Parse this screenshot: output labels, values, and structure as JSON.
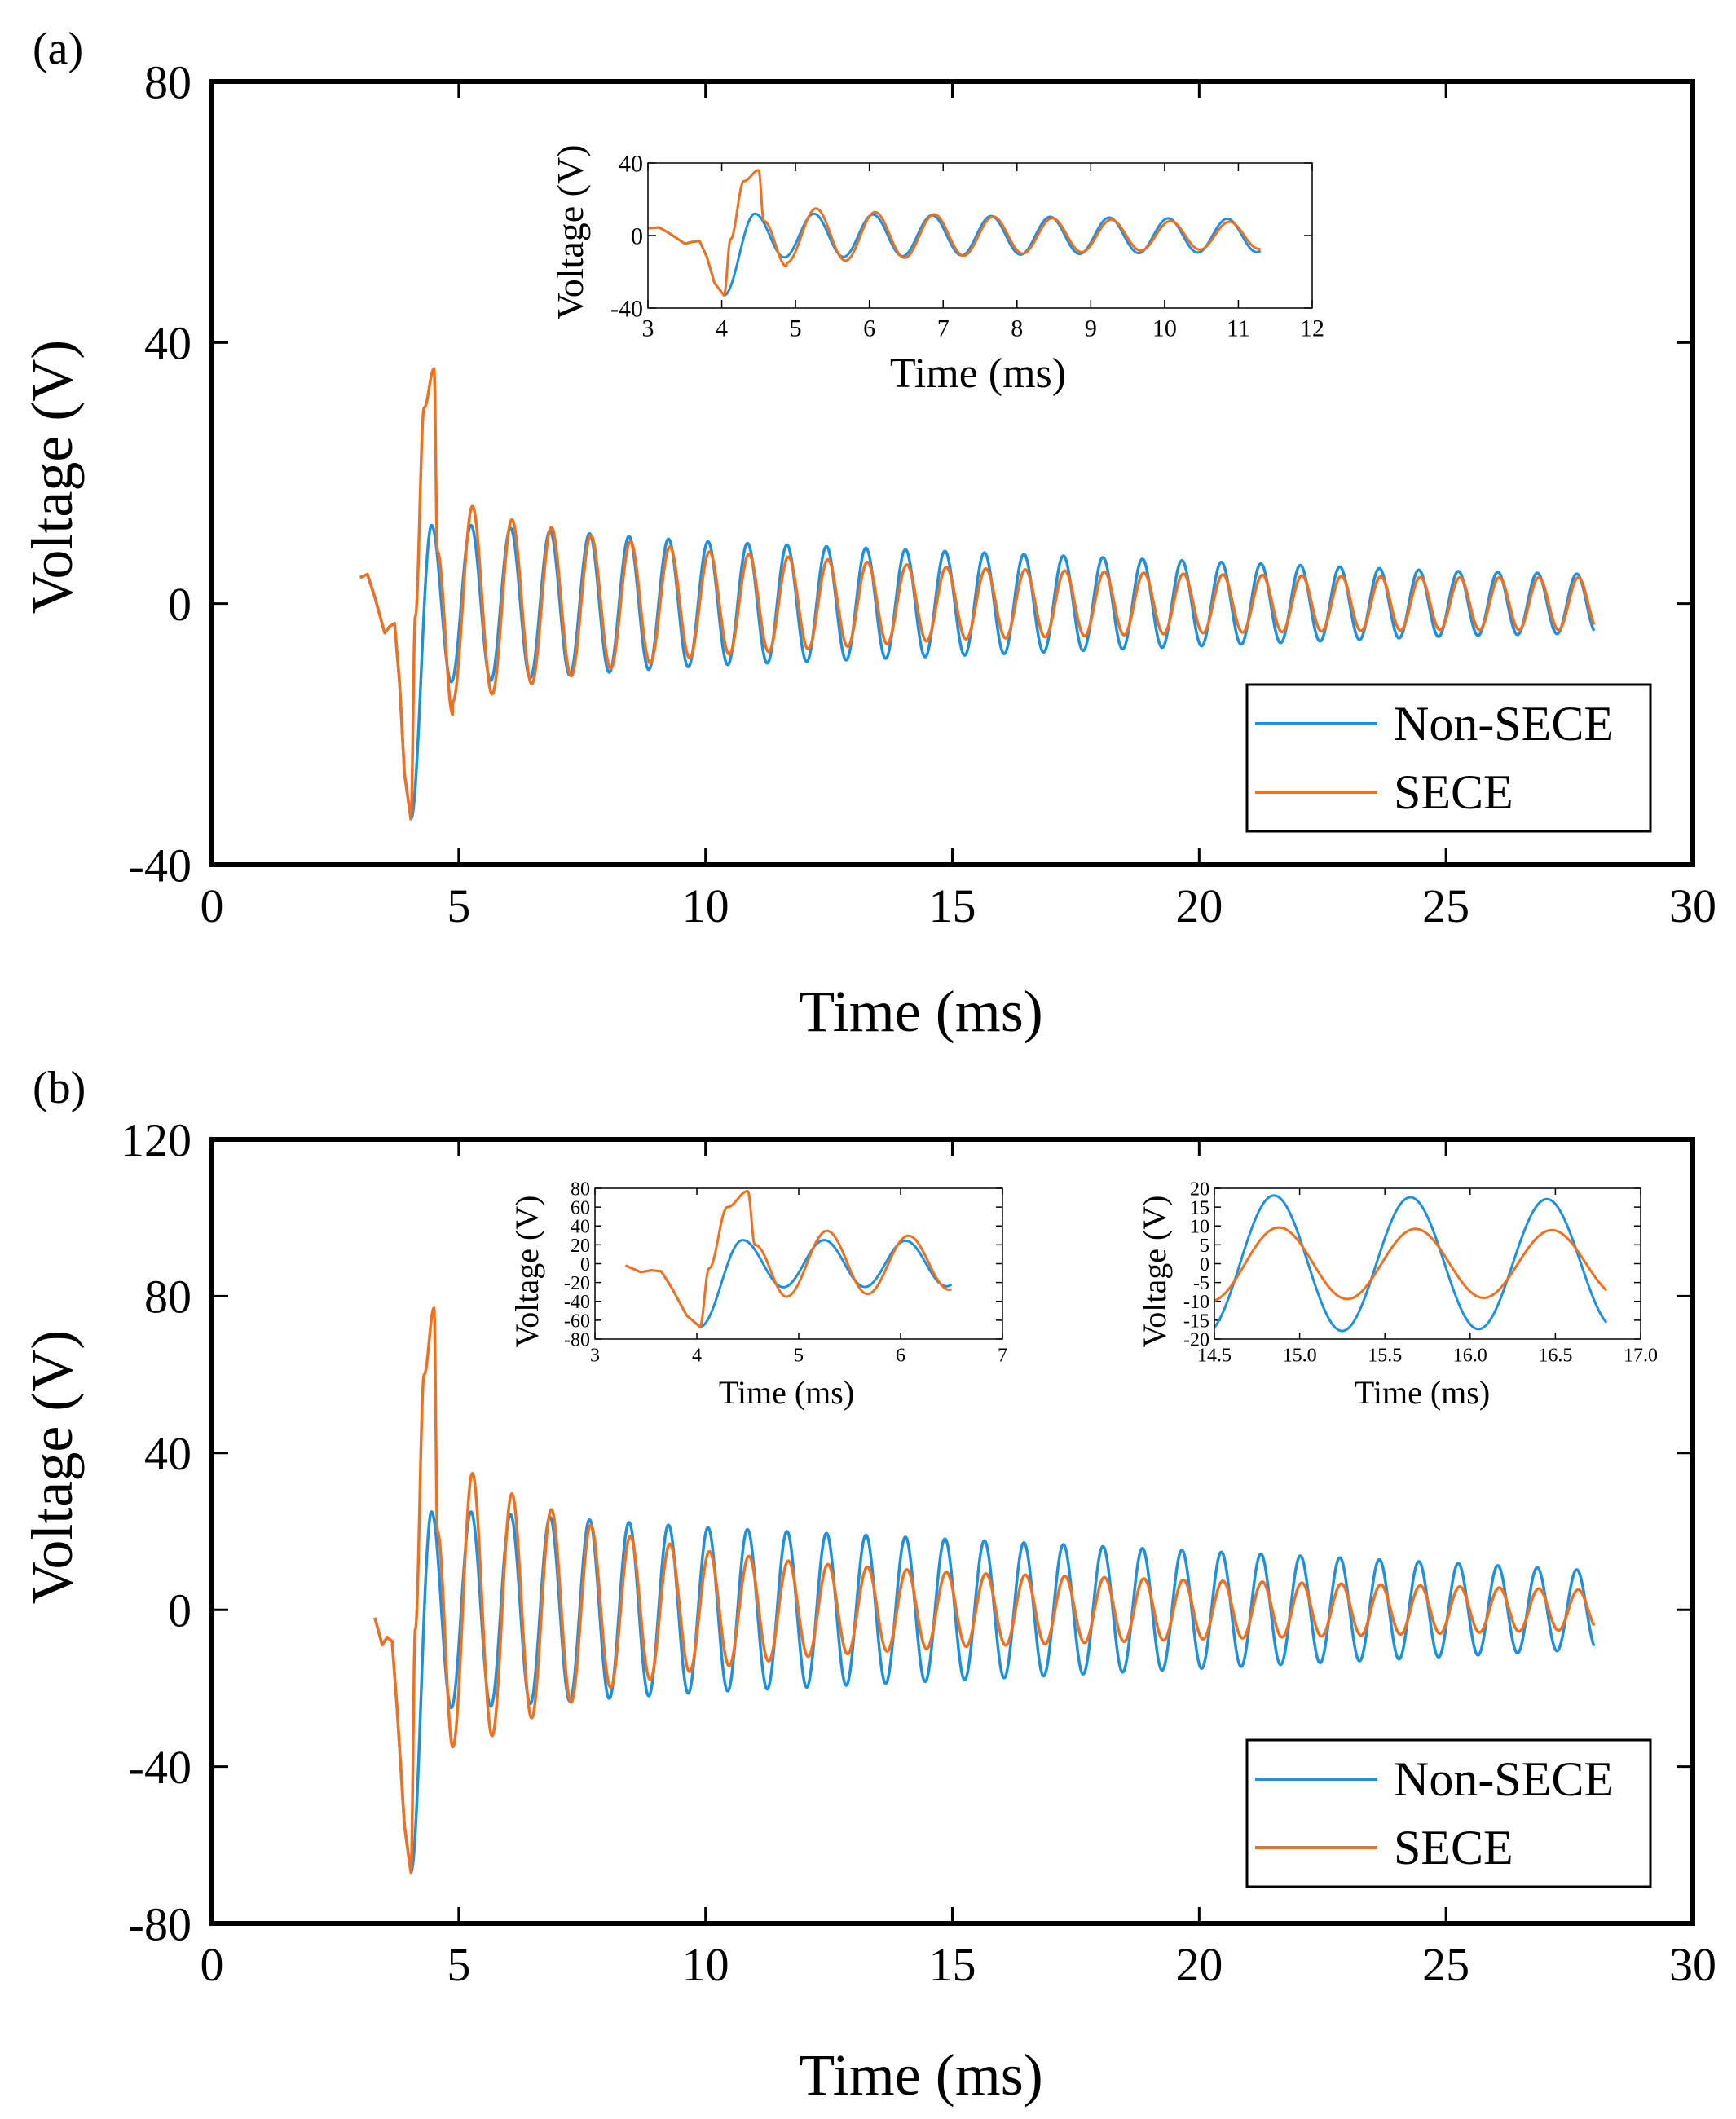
{
  "figure": {
    "background": "#ffffff"
  },
  "chart_data": [
    {
      "type": "line",
      "panel_label": "(a)",
      "xlabel": "Time (ms)",
      "ylabel": "Voltage (V)",
      "xlim": [
        0,
        30
      ],
      "ylim": [
        -40,
        80
      ],
      "xticks": [
        0,
        5,
        10,
        15,
        20,
        25,
        30
      ],
      "yticks": [
        -40,
        0,
        40,
        80
      ],
      "legend_position": "bottom-right",
      "series": [
        {
          "name": "Non-SECE",
          "color": "#1f8fe0",
          "model": {
            "t_start": 3.0,
            "t_end": 28.0,
            "period_ms": 0.8,
            "pre_trigger": [
              [
                3.0,
                4.0
              ],
              [
                3.15,
                4.5
              ],
              [
                3.3,
                1.0
              ],
              [
                3.5,
                -4.5
              ],
              [
                3.6,
                -3.5
              ],
              [
                3.7,
                -3.0
              ],
              [
                3.8,
                -12.0
              ],
              [
                3.9,
                -26.0
              ],
              [
                4.03,
                -33.0
              ]
            ],
            "first_peak": [
              [
                4.45,
                12.0
              ],
              [
                4.85,
                -12.0
              ]
            ],
            "amp_envelope": [
              [
                5.25,
                12.0
              ],
              [
                10,
                9.5
              ],
              [
                15,
                8.0
              ],
              [
                20,
                6.5
              ],
              [
                25,
                5.0
              ],
              [
                28,
                4.5
              ]
            ]
          }
        },
        {
          "name": "SECE",
          "color": "#f07020",
          "model": {
            "t_start": 3.0,
            "t_end": 28.0,
            "period_ms": 0.8,
            "pre_trigger": [
              [
                3.0,
                4.0
              ],
              [
                3.15,
                4.5
              ],
              [
                3.3,
                1.0
              ],
              [
                3.5,
                -4.5
              ],
              [
                3.6,
                -3.5
              ],
              [
                3.7,
                -3.0
              ],
              [
                3.8,
                -12.0
              ],
              [
                3.9,
                -26.0
              ],
              [
                4.03,
                -33.0
              ]
            ],
            "first_peak": [
              [
                4.12,
                -2.0
              ],
              [
                4.3,
                30.0
              ],
              [
                4.5,
                36.0
              ],
              [
                4.57,
                8.0
              ],
              [
                4.88,
                -17.0
              ]
            ],
            "amp_envelope": [
              [
                5.25,
                15.0
              ],
              [
                6.0,
                13.0
              ],
              [
                8,
                10.0
              ],
              [
                10,
                8.0
              ],
              [
                15,
                5.5
              ],
              [
                20,
                4.5
              ],
              [
                25,
                4.0
              ],
              [
                28,
                4.0
              ]
            ]
          }
        }
      ],
      "insets": [
        {
          "xlabel": "Time (ms)",
          "ylabel": "Voltage (V)",
          "xlim": [
            3,
            12
          ],
          "ylim": [
            -40,
            40
          ],
          "xticks": [
            3,
            4,
            5,
            6,
            7,
            8,
            9,
            10,
            11,
            12
          ],
          "yticks": [
            -40,
            0,
            40
          ],
          "t_range": [
            3.0,
            11.3
          ]
        }
      ]
    },
    {
      "type": "line",
      "panel_label": "(b)",
      "xlabel": "Time (ms)",
      "ylabel": "Voltage (V)",
      "xlim": [
        0,
        30
      ],
      "ylim": [
        -80,
        120
      ],
      "xticks": [
        0,
        5,
        10,
        15,
        20,
        25,
        30
      ],
      "yticks": [
        -80,
        -40,
        0,
        40,
        80,
        120
      ],
      "legend_position": "bottom-right",
      "series": [
        {
          "name": "Non-SECE",
          "color": "#1f8fe0",
          "model": {
            "t_start": 3.3,
            "t_end": 28.0,
            "period_ms": 0.8,
            "pre_trigger": [
              [
                3.3,
                -2.0
              ],
              [
                3.45,
                -9.0
              ],
              [
                3.55,
                -7.0
              ],
              [
                3.65,
                -8.0
              ],
              [
                3.75,
                -25.0
              ],
              [
                3.9,
                -55.0
              ],
              [
                4.03,
                -67.0
              ]
            ],
            "first_peak": [
              [
                4.45,
                25.0
              ],
              [
                4.85,
                -25.0
              ]
            ],
            "amp_envelope": [
              [
                5.25,
                25.0
              ],
              [
                10,
                21.0
              ],
              [
                15,
                18.0
              ],
              [
                20,
                15.0
              ],
              [
                25,
                12.0
              ],
              [
                28,
                10.0
              ]
            ]
          }
        },
        {
          "name": "SECE",
          "color": "#f07020",
          "model": {
            "t_start": 3.3,
            "t_end": 28.0,
            "period_ms": 0.8,
            "pre_trigger": [
              [
                3.3,
                -2.0
              ],
              [
                3.45,
                -9.0
              ],
              [
                3.55,
                -7.0
              ],
              [
                3.65,
                -8.0
              ],
              [
                3.75,
                -25.0
              ],
              [
                3.9,
                -55.0
              ],
              [
                4.03,
                -67.0
              ]
            ],
            "first_peak": [
              [
                4.12,
                -5.0
              ],
              [
                4.3,
                60.0
              ],
              [
                4.5,
                77.0
              ],
              [
                4.57,
                20.0
              ],
              [
                4.88,
                -35.0
              ]
            ],
            "amp_envelope": [
              [
                5.25,
                35.0
              ],
              [
                6.0,
                30.0
              ],
              [
                8,
                20.0
              ],
              [
                10,
                15.0
              ],
              [
                12,
                12.0
              ],
              [
                15,
                9.5
              ],
              [
                20,
                7.5
              ],
              [
                25,
                6.0
              ],
              [
                28,
                5.0
              ]
            ]
          }
        }
      ],
      "insets": [
        {
          "xlabel": "Time (ms)",
          "ylabel": "Voltage (V)",
          "xlim": [
            3,
            7
          ],
          "ylim": [
            -80,
            80
          ],
          "xticks": [
            3,
            4,
            5,
            6,
            7
          ],
          "yticks": [
            -80,
            -60,
            -40,
            -20,
            0,
            20,
            40,
            60,
            80
          ],
          "t_range": [
            3.3,
            6.5
          ]
        },
        {
          "xlabel": "Time (ms)",
          "ylabel": "Voltage (V)",
          "xlim": [
            14.5,
            17.0
          ],
          "ylim": [
            -20,
            20
          ],
          "xticks": [
            14.5,
            15.0,
            15.5,
            16.0,
            16.5,
            17.0
          ],
          "xticklabels": [
            "14.5",
            "15.0",
            "15.5",
            "16.0",
            "16.5",
            "17.0"
          ],
          "yticks": [
            -20,
            -15,
            -10,
            -5,
            0,
            5,
            10,
            15,
            20
          ],
          "t_range": [
            14.5,
            16.8
          ]
        }
      ]
    }
  ]
}
